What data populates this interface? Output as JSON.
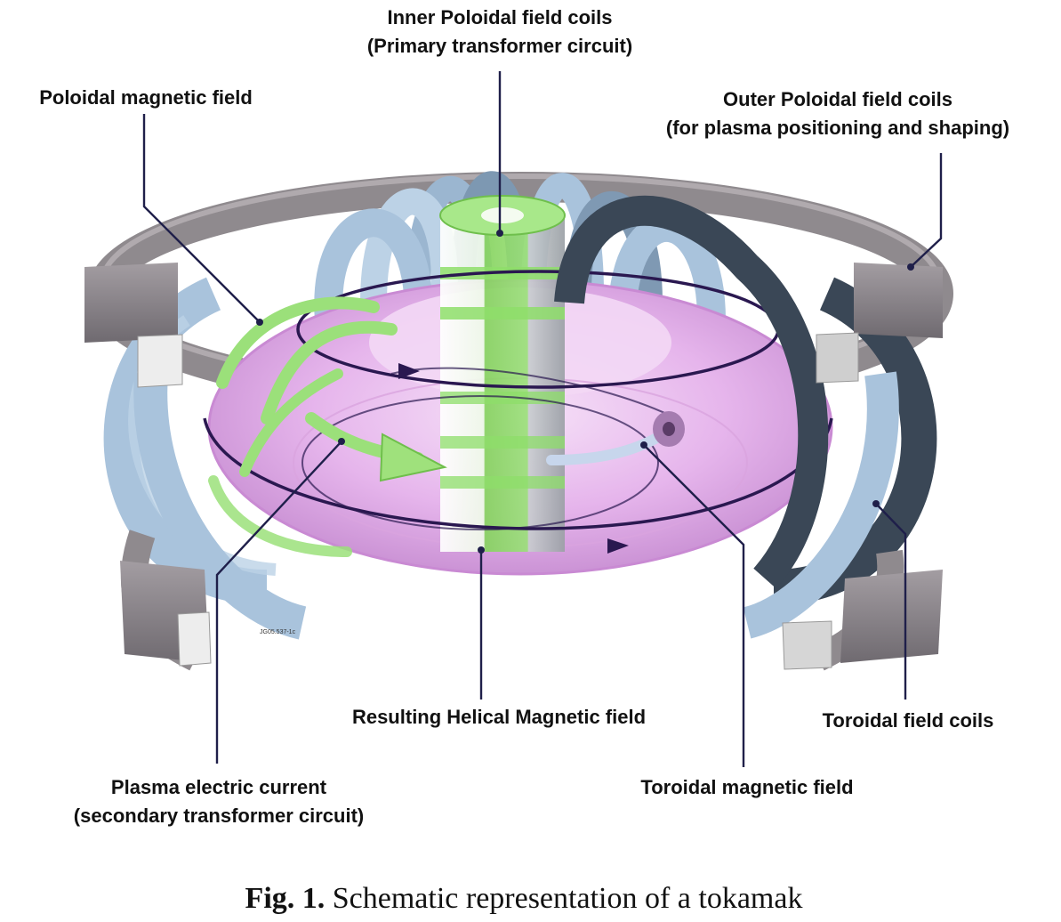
{
  "labels": {
    "inner_poloidal_line1": "Inner Poloidal field coils",
    "inner_poloidal_line2": "(Primary transformer circuit)",
    "poloidal_field": "Poloidal magnetic field",
    "outer_poloidal_line1": "Outer Poloidal field coils",
    "outer_poloidal_line2": "(for plasma positioning and shaping)",
    "helical_field": "Resulting Helical Magnetic field",
    "toroidal_coils": "Toroidal field coils",
    "plasma_current_line1": "Plasma electric current",
    "plasma_current_line2": "(secondary transformer circuit)",
    "toroidal_field": "Toroidal magnetic field",
    "image_code": "JG05.537-1c"
  },
  "caption": {
    "prefix": "Fig. 1.",
    "text": " Schematic representation of a tokamak"
  },
  "colors": {
    "plasma": "#e7b8ec",
    "plasma_edge": "#c98ad3",
    "toroidal_coil_light": "#a9c3dc",
    "toroidal_coil_dark": "#3a4756",
    "poloidal_coil": "#8f8a8e",
    "central_solenoid": "#8ede6a",
    "poloidal_arrow": "#9be07a",
    "helical_line": "#2a1850",
    "leader_line": "#1f1f4a"
  }
}
